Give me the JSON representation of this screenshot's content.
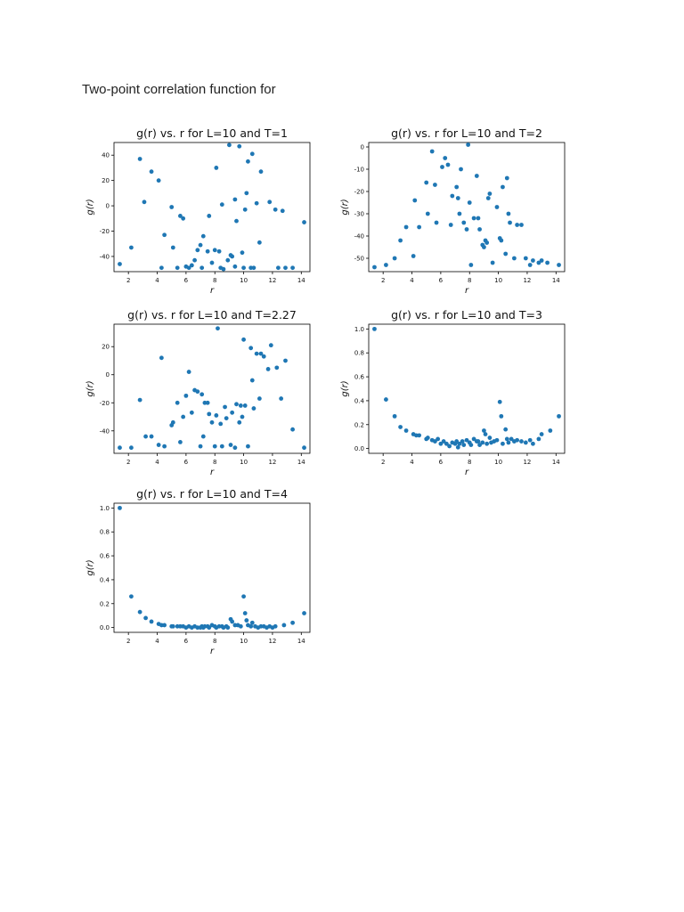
{
  "page": {
    "title": "Two-point correlation function for"
  },
  "colors": {
    "marker": "#1f77b4",
    "axis": "#000000",
    "text": "#111111"
  },
  "chart_data": [
    {
      "type": "scatter",
      "title": "g(r) vs. r for L=10 and T=1",
      "xlabel": "r",
      "ylabel": "g(r)",
      "xlim": [
        1.0,
        14.6
      ],
      "ylim": [
        -52,
        50
      ],
      "xticks": [
        2,
        4,
        6,
        8,
        10,
        12,
        14
      ],
      "yticks": [
        -40,
        -20,
        0,
        20,
        40
      ],
      "grid": false,
      "series": [
        {
          "x": [
            1.4,
            2.2,
            2.8,
            3.1,
            3.6,
            4.1,
            4.3,
            4.5,
            5.0,
            5.1,
            5.4,
            5.6,
            5.8,
            6.0,
            6.2,
            6.4,
            6.6,
            6.8,
            7.0,
            7.1,
            7.2,
            7.5,
            7.6,
            7.8,
            8.0,
            8.1,
            8.3,
            8.4,
            8.5,
            8.6,
            8.9,
            9.0,
            9.1,
            9.2,
            9.4,
            9.4,
            9.5,
            9.7,
            9.9,
            10.0,
            10.1,
            10.2,
            10.3,
            10.5,
            10.6,
            10.7,
            10.9,
            11.1,
            11.2,
            11.8,
            12.2,
            12.4,
            12.7,
            12.9,
            13.4,
            14.2
          ],
          "y": [
            -46,
            -33,
            37,
            3,
            27,
            20,
            -49,
            -23,
            -1,
            -33,
            -49,
            -8,
            -10,
            -48,
            -49,
            -47,
            -43,
            -35,
            -31,
            -49,
            -24,
            -36,
            -8,
            -45,
            -35,
            30,
            -36,
            -49,
            1,
            -50,
            -43,
            48,
            -39,
            -40,
            -48,
            5,
            -12,
            47,
            -37,
            -49,
            -3,
            10,
            35,
            -49,
            41,
            -49,
            2,
            -29,
            27,
            3,
            -3,
            -49,
            -4,
            -49,
            -49,
            -13
          ]
        }
      ]
    },
    {
      "type": "scatter",
      "title": "g(r) vs. r for L=10 and T=2",
      "xlabel": "r",
      "ylabel": "g(r)",
      "xlim": [
        1.0,
        14.6
      ],
      "ylim": [
        -56,
        2
      ],
      "xticks": [
        2,
        4,
        6,
        8,
        10,
        12,
        14
      ],
      "yticks": [
        -50,
        -40,
        -30,
        -20,
        -10,
        0
      ],
      "grid": false,
      "series": [
        {
          "x": [
            1.4,
            2.2,
            2.8,
            3.2,
            3.6,
            4.1,
            4.2,
            4.5,
            5.0,
            5.1,
            5.4,
            5.6,
            5.7,
            6.1,
            6.3,
            6.5,
            6.7,
            6.8,
            7.1,
            7.2,
            7.3,
            7.4,
            7.6,
            7.8,
            7.9,
            8.0,
            8.1,
            8.3,
            8.5,
            8.6,
            8.7,
            8.9,
            9.0,
            9.1,
            9.2,
            9.3,
            9.4,
            9.6,
            9.9,
            10.1,
            10.2,
            10.3,
            10.5,
            10.6,
            10.7,
            10.8,
            11.1,
            11.3,
            11.6,
            11.9,
            12.2,
            12.4,
            12.8,
            13.0,
            13.4,
            14.2
          ],
          "y": [
            -54,
            -53,
            -50,
            -42,
            -36,
            -49,
            -24,
            -36,
            -16,
            -30,
            -2,
            -17,
            -34,
            -9,
            -5,
            -8,
            -35,
            -22,
            -18,
            -23,
            -30,
            -10,
            -34,
            -37,
            1,
            -25,
            -53,
            -32,
            -13,
            -32,
            -37,
            -44,
            -45,
            -42,
            -43,
            -23,
            -21,
            -52,
            -27,
            -41,
            -42,
            -18,
            -48,
            -14,
            -30,
            -34,
            -50,
            -35,
            -35,
            -50,
            -53,
            -51,
            -52,
            -51,
            -52,
            -53
          ]
        }
      ]
    },
    {
      "type": "scatter",
      "title": "g(r) vs. r for L=10 and T=2.27",
      "xlabel": "r",
      "ylabel": "g(r)",
      "xlim": [
        1.0,
        14.6
      ],
      "ylim": [
        -56,
        36
      ],
      "xticks": [
        2,
        4,
        6,
        8,
        10,
        12,
        14
      ],
      "yticks": [
        -40,
        -20,
        0,
        20
      ],
      "grid": false,
      "series": [
        {
          "x": [
            1.4,
            2.2,
            2.8,
            3.2,
            3.6,
            4.1,
            4.3,
            4.5,
            5.0,
            5.1,
            5.4,
            5.6,
            5.8,
            6.0,
            6.2,
            6.4,
            6.6,
            6.8,
            7.0,
            7.1,
            7.2,
            7.3,
            7.5,
            7.6,
            7.8,
            8.0,
            8.1,
            8.2,
            8.4,
            8.5,
            8.7,
            8.8,
            9.1,
            9.2,
            9.4,
            9.5,
            9.7,
            9.8,
            9.9,
            10.0,
            10.1,
            10.3,
            10.5,
            10.6,
            10.7,
            10.9,
            11.1,
            11.2,
            11.4,
            11.7,
            11.9,
            12.3,
            12.6,
            12.9,
            13.4,
            14.2
          ],
          "y": [
            -52,
            -52,
            -18,
            -44,
            -44,
            -50,
            12,
            -51,
            -36,
            -34,
            -20,
            -48,
            -30,
            -15,
            2,
            -27,
            -11,
            -12,
            -51,
            -14,
            -44,
            -20,
            -20,
            -28,
            -34,
            -51,
            -29,
            33,
            -35,
            -51,
            -23,
            -31,
            -50,
            -27,
            -52,
            -21,
            -34,
            -22,
            -30,
            25,
            -22,
            -51,
            19,
            -4,
            -24,
            15,
            -17,
            15,
            13,
            4,
            21,
            5,
            -17,
            10,
            -39,
            -52
          ]
        }
      ]
    },
    {
      "type": "scatter",
      "title": "g(r) vs. r for L=10 and T=3",
      "xlabel": "r",
      "ylabel": "g(r)",
      "xlim": [
        1.0,
        14.6
      ],
      "ylim": [
        -0.04,
        1.04
      ],
      "xticks": [
        2,
        4,
        6,
        8,
        10,
        12,
        14
      ],
      "yticks": [
        0.0,
        0.2,
        0.4,
        0.6,
        0.8,
        1.0
      ],
      "grid": false,
      "series": [
        {
          "x": [
            1.4,
            2.2,
            2.8,
            3.2,
            3.6,
            4.1,
            4.3,
            4.5,
            5.0,
            5.1,
            5.4,
            5.6,
            5.8,
            6.0,
            6.2,
            6.4,
            6.6,
            6.8,
            7.0,
            7.1,
            7.2,
            7.3,
            7.5,
            7.6,
            7.8,
            8.0,
            8.1,
            8.3,
            8.5,
            8.6,
            8.7,
            8.9,
            9.0,
            9.1,
            9.2,
            9.4,
            9.5,
            9.7,
            9.9,
            10.1,
            10.2,
            10.3,
            10.5,
            10.6,
            10.7,
            10.9,
            11.1,
            11.3,
            11.6,
            11.9,
            12.2,
            12.4,
            12.8,
            13.0,
            13.6,
            14.2
          ],
          "y": [
            1.0,
            0.41,
            0.27,
            0.18,
            0.15,
            0.12,
            0.11,
            0.11,
            0.08,
            0.09,
            0.07,
            0.06,
            0.08,
            0.04,
            0.06,
            0.04,
            0.02,
            0.05,
            0.04,
            0.06,
            0.01,
            0.04,
            0.06,
            0.03,
            0.07,
            0.05,
            0.03,
            0.08,
            0.06,
            0.06,
            0.03,
            0.05,
            0.15,
            0.12,
            0.04,
            0.09,
            0.05,
            0.06,
            0.07,
            0.39,
            0.27,
            0.04,
            0.16,
            0.08,
            0.05,
            0.08,
            0.06,
            0.07,
            0.06,
            0.05,
            0.07,
            0.04,
            0.08,
            0.12,
            0.15,
            0.27
          ]
        }
      ]
    },
    {
      "type": "scatter",
      "title": "g(r) vs. r for L=10 and T=4",
      "xlabel": "r",
      "ylabel": "g(r)",
      "xlim": [
        1.0,
        14.6
      ],
      "ylim": [
        -0.04,
        1.04
      ],
      "xticks": [
        2,
        4,
        6,
        8,
        10,
        12,
        14
      ],
      "yticks": [
        0.0,
        0.2,
        0.4,
        0.6,
        0.8,
        1.0
      ],
      "grid": false,
      "series": [
        {
          "x": [
            1.4,
            2.2,
            2.8,
            3.2,
            3.6,
            4.1,
            4.3,
            4.5,
            5.0,
            5.1,
            5.4,
            5.6,
            5.8,
            6.0,
            6.2,
            6.4,
            6.6,
            6.8,
            7.0,
            7.1,
            7.2,
            7.3,
            7.5,
            7.6,
            7.8,
            8.0,
            8.1,
            8.3,
            8.5,
            8.6,
            8.8,
            8.9,
            9.1,
            9.2,
            9.4,
            9.6,
            9.8,
            10.0,
            10.1,
            10.2,
            10.3,
            10.5,
            10.6,
            10.8,
            11.0,
            11.2,
            11.4,
            11.6,
            11.8,
            12.0,
            12.2,
            12.8,
            13.4,
            14.2
          ],
          "y": [
            1.0,
            0.26,
            0.13,
            0.08,
            0.05,
            0.03,
            0.02,
            0.02,
            0.01,
            0.01,
            0.01,
            0.01,
            0.01,
            0.0,
            0.01,
            0.0,
            0.01,
            0.0,
            0.0,
            0.01,
            0.0,
            0.01,
            0.01,
            0.0,
            0.02,
            0.01,
            0.0,
            0.01,
            0.01,
            0.0,
            0.01,
            0.0,
            0.07,
            0.05,
            0.02,
            0.02,
            0.01,
            0.26,
            0.12,
            0.06,
            0.02,
            0.01,
            0.04,
            0.01,
            0.0,
            0.01,
            0.01,
            0.0,
            0.01,
            0.0,
            0.01,
            0.02,
            0.04,
            0.12
          ]
        }
      ]
    }
  ]
}
